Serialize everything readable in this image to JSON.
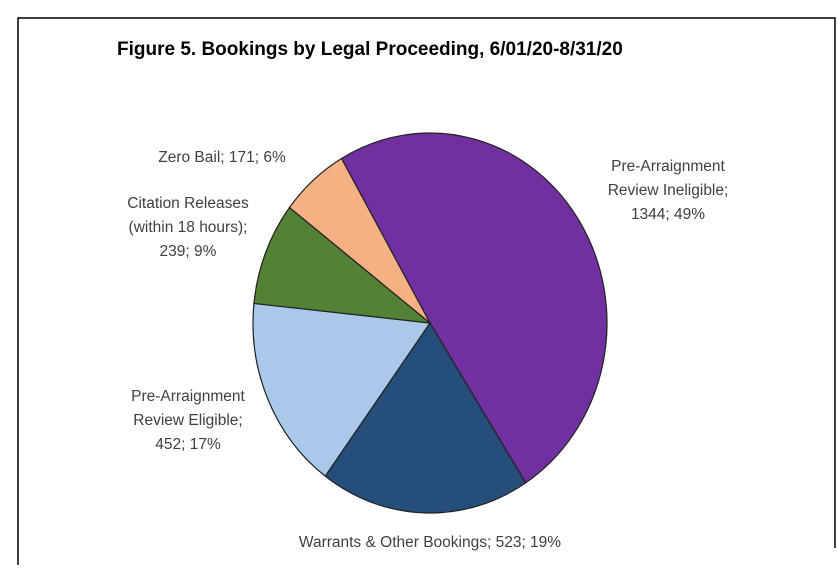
{
  "chart_data": {
    "type": "pie",
    "title": "Figure 5. Bookings by Legal Proceeding, 6/01/20-8/31/20",
    "values": [
      1344,
      523,
      452,
      239,
      171
    ],
    "value_labels": [
      "Pre-Arraignment Review Ineligible; 1344; 49%",
      "Warrants & Other Bookings; 523; 19%",
      "Pre-Arraignment Review Eligible; 452; 17%",
      "Citation Releases (within 18 hours); 239; 9%",
      "Zero Bail; 171; 6%"
    ],
    "colors": [
      "#7030a0",
      "#264e7a",
      "#a9c8ea",
      "#538135",
      "#f5b183"
    ]
  }
}
